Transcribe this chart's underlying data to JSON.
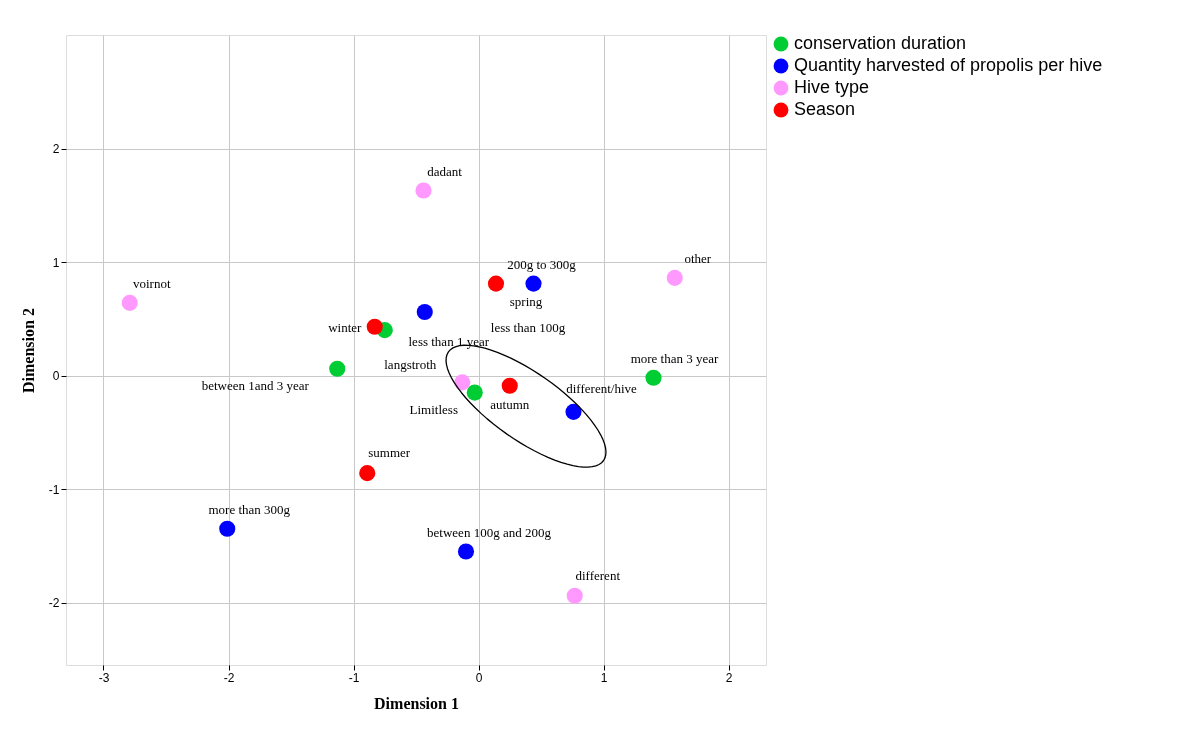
{
  "chart_data": {
    "type": "scatter",
    "xlabel": "Dimension 1",
    "ylabel": "Dimension 2",
    "xlim": [
      -3.3,
      2.3
    ],
    "ylim": [
      -2.55,
      3.0
    ],
    "xticks": [
      {
        "value": -3,
        "label": "-3"
      },
      {
        "value": -2,
        "label": "-2"
      },
      {
        "value": -1,
        "label": "-1"
      },
      {
        "value": 0,
        "label": "0"
      },
      {
        "value": 1,
        "label": "1"
      },
      {
        "value": 2,
        "label": "2"
      }
    ],
    "yticks": [
      {
        "value": -2,
        "label": "-2"
      },
      {
        "value": -1,
        "label": "-1"
      },
      {
        "value": 0,
        "label": "0"
      },
      {
        "value": 1,
        "label": "1"
      },
      {
        "value": 2,
        "label": "2"
      }
    ],
    "grid": true,
    "legend": "top right",
    "marker": "circle",
    "series": [
      {
        "name": "conservation duration",
        "color": "#00cc33",
        "x": [
          -0.75,
          -1.13,
          -0.03,
          1.4
        ],
        "values": [
          0.4,
          0.06,
          -0.15,
          -0.02
        ]
      },
      {
        "name": "Quantity harvested of propolis per hive",
        "color": "#0000ff",
        "x": [
          -0.43,
          0.44,
          0.76,
          -2.01,
          -0.1
        ],
        "values": [
          0.56,
          0.81,
          -0.32,
          -1.35,
          -1.55
        ]
      },
      {
        "name": "Hive type",
        "color": "#ff99ff",
        "x": [
          -0.44,
          -2.79,
          1.57,
          -0.13,
          0.77
        ],
        "values": [
          1.63,
          0.64,
          0.86,
          -0.06,
          -1.94
        ]
      },
      {
        "name": "Season",
        "color": "#ff0000",
        "x": [
          -0.83,
          0.14,
          0.25,
          -0.89
        ],
        "values": [
          0.43,
          0.81,
          -0.09,
          -0.86
        ]
      }
    ],
    "annotations": [
      {
        "text": "dadant",
        "x": -0.44,
        "y": 1.63
      },
      {
        "text": "voirnot",
        "x": -2.79,
        "y": 0.64
      },
      {
        "text": "winter",
        "x": -0.83,
        "y": 0.43
      },
      {
        "text": "less than 1 year",
        "x": -0.75,
        "y": 0.4
      },
      {
        "text": "langstroth",
        "x": -0.13,
        "y": -0.06
      },
      {
        "text": "between 1and 3 year",
        "x": -1.13,
        "y": 0.06
      },
      {
        "text": "Limitless",
        "x": -0.03,
        "y": -0.15
      },
      {
        "text": "200g to 300g",
        "x": 0.44,
        "y": 0.81
      },
      {
        "text": "spring",
        "x": 0.14,
        "y": 0.81
      },
      "less than 100g",
      {
        "text": "autumn",
        "x": 0.25,
        "y": -0.09
      },
      {
        "text": "different/hive",
        "x": 0.76,
        "y": -0.32
      },
      {
        "text": "more than 3 year",
        "x": 1.4,
        "y": -0.02
      },
      {
        "text": "other",
        "x": 1.57,
        "y": 0.86
      },
      {
        "text": "summer",
        "x": -0.89,
        "y": -0.86
      },
      {
        "text": "more than 300g",
        "x": -2.01,
        "y": -1.35
      },
      {
        "text": "between 100g and 200g",
        "x": -0.1,
        "y": -1.55
      },
      {
        "text": "different",
        "x": 0.77,
        "y": -1.94
      }
    ]
  }
}
